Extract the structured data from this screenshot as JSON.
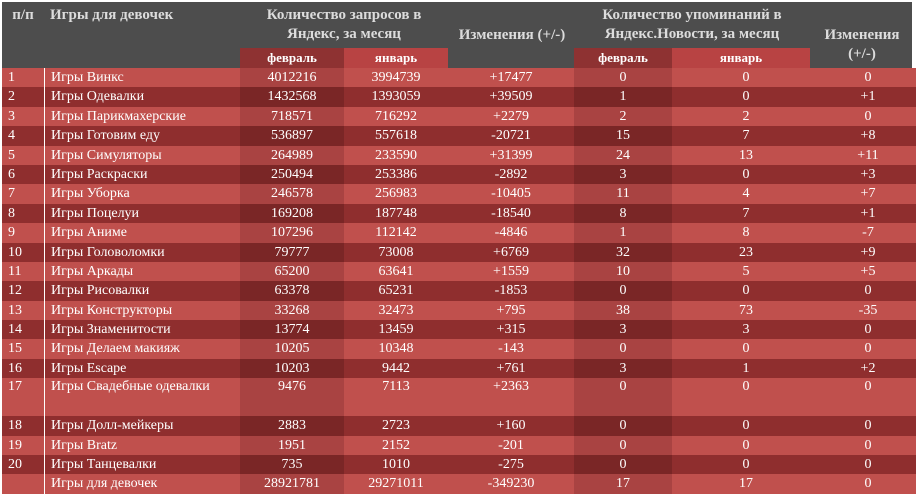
{
  "header": {
    "num": "п/п",
    "name": "Игры для девочек",
    "queries_title": "Количество запросов в Яндекс, за месяц",
    "queries_feb": "февраль",
    "queries_jan": "январь",
    "queries_change": "Изменения (+/-)",
    "mentions_title": "Количество упоминаний в Яндекс.Новости, за месяц",
    "mentions_feb": "февраль",
    "mentions_jan": "январь",
    "mentions_change": "Изменения (+/-)"
  },
  "rows": [
    {
      "n": "1",
      "name": "Игры Винкс",
      "qf": "4012216",
      "qj": "3994739",
      "qc": "+17477",
      "mf": "0",
      "mj": "0",
      "mc": "0"
    },
    {
      "n": "2",
      "name": "Игры Одевалки",
      "qf": "1432568",
      "qj": "1393059",
      "qc": "+39509",
      "mf": "1",
      "mj": "0",
      "mc": "+1"
    },
    {
      "n": "3",
      "name": "Игры Парикмахерские",
      "qf": "718571",
      "qj": "716292",
      "qc": "+2279",
      "mf": "2",
      "mj": "2",
      "mc": "0"
    },
    {
      "n": "4",
      "name": "Игры Готовим еду",
      "qf": "536897",
      "qj": "557618",
      "qc": "-20721",
      "mf": "15",
      "mj": "7",
      "mc": "+8"
    },
    {
      "n": "5",
      "name": "Игры Симуляторы",
      "qf": "264989",
      "qj": "233590",
      "qc": "+31399",
      "mf": "24",
      "mj": "13",
      "mc": "+11"
    },
    {
      "n": "6",
      "name": "Игры Раскраски",
      "qf": "250494",
      "qj": "253386",
      "qc": "-2892",
      "mf": "3",
      "mj": "0",
      "mc": "+3"
    },
    {
      "n": "7",
      "name": "Игры Уборка",
      "qf": "246578",
      "qj": "256983",
      "qc": "-10405",
      "mf": "11",
      "mj": "4",
      "mc": "+7"
    },
    {
      "n": "8",
      "name": "Игры Поцелуи",
      "qf": "169208",
      "qj": "187748",
      "qc": "-18540",
      "mf": "8",
      "mj": "7",
      "mc": "+1"
    },
    {
      "n": "9",
      "name": "Игры Аниме",
      "qf": "107296",
      "qj": "112142",
      "qc": "-4846",
      "mf": "1",
      "mj": "8",
      "mc": "-7"
    },
    {
      "n": "10",
      "name": "Игры Головоломки",
      "qf": "79777",
      "qj": "73008",
      "qc": "+6769",
      "mf": "32",
      "mj": "23",
      "mc": "+9"
    },
    {
      "n": "11",
      "name": "Игры Аркады",
      "qf": "65200",
      "qj": "63641",
      "qc": "+1559",
      "mf": "10",
      "mj": "5",
      "mc": "+5"
    },
    {
      "n": "12",
      "name": "Игры Рисовалки",
      "qf": "63378",
      "qj": "65231",
      "qc": "-1853",
      "mf": "0",
      "mj": "0",
      "mc": "0"
    },
    {
      "n": "13",
      "name": "Игры Конструкторы",
      "qf": "33268",
      "qj": "32473",
      "qc": "+795",
      "mf": "38",
      "mj": "73",
      "mc": "-35"
    },
    {
      "n": "14",
      "name": "Игры Знаменитости",
      "qf": "13774",
      "qj": "13459",
      "qc": "+315",
      "mf": "3",
      "mj": "3",
      "mc": "0"
    },
    {
      "n": "15",
      "name": "Игры Делаем макияж",
      "qf": "10205",
      "qj": "10348",
      "qc": "-143",
      "mf": "0",
      "mj": "0",
      "mc": "0"
    },
    {
      "n": "16",
      "name": "Игры Escape",
      "qf": "10203",
      "qj": "9442",
      "qc": "+761",
      "mf": "3",
      "mj": "1",
      "mc": "+2"
    },
    {
      "n": "17",
      "name": "Игры Свадебные одевалки",
      "qf": "9476",
      "qj": "7113",
      "qc": "+2363",
      "mf": "0",
      "mj": "0",
      "mc": "0",
      "tall": true
    },
    {
      "n": "18",
      "name": "Игры Долл-мейкеры",
      "qf": "2883",
      "qj": "2723",
      "qc": "+160",
      "mf": "0",
      "mj": "0",
      "mc": "0"
    },
    {
      "n": "19",
      "name": "Игры Bratz",
      "qf": "1951",
      "qj": "2152",
      "qc": "-201",
      "mf": "0",
      "mj": "0",
      "mc": "0"
    },
    {
      "n": "20",
      "name": "Игры Танцевалки",
      "qf": "735",
      "qj": "1010",
      "qc": "-275",
      "mf": "0",
      "mj": "0",
      "mc": "0"
    },
    {
      "n": "",
      "name": "Игры для девочек",
      "qf": "28921781",
      "qj": "29271011",
      "qc": "-349230",
      "mf": "17",
      "mj": "17",
      "mc": "0"
    }
  ],
  "colors": {
    "header_bg": "#4d4d4d",
    "row_light": "#c0504d",
    "row_dark": "#8f2e2e",
    "sub_header_dark": "#8e3232"
  }
}
